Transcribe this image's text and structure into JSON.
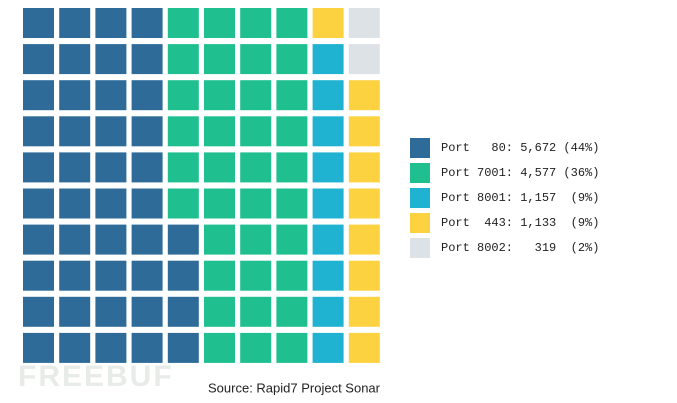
{
  "chart_data": {
    "type": "waffle",
    "series": [
      {
        "name": "Port   80: 5,672 (44%)",
        "color": "#2e6b99",
        "value": 44
      },
      {
        "name": "Port 7001: 4,577 (36%)",
        "color": "#1fbf8f",
        "value": 36
      },
      {
        "name": "Port 8001: 1,157  (9%)",
        "color": "#1fb3d1",
        "value": 9
      },
      {
        "name": "Port  443: 1,133  (9%)",
        "color": "#fdd240",
        "value": 9
      },
      {
        "name": "Port 8002:   319  (2%)",
        "color": "#dde2e6",
        "value": 2
      }
    ],
    "source": "Source: Rapid7 Project Sonar",
    "watermark": "FREEBUF"
  }
}
